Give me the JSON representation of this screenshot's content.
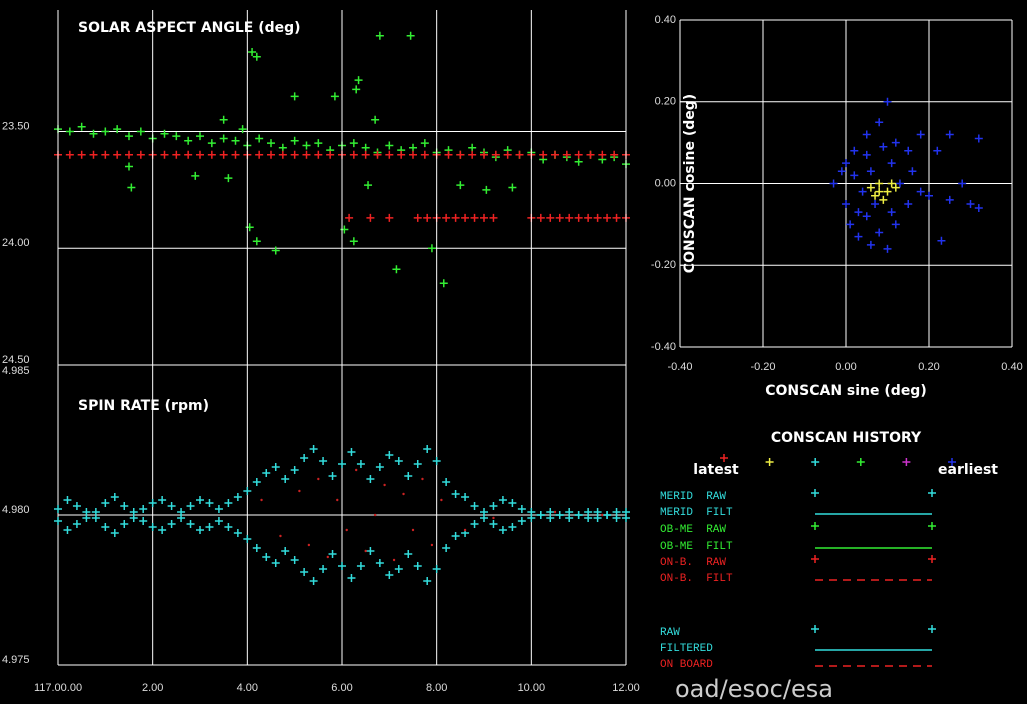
{
  "chart_data": [
    {
      "type": "scatter",
      "title": "SOLAR ASPECT ANGLE (deg)",
      "xlim": [
        0,
        12
      ],
      "ylim": [
        24.5,
        22.98
      ],
      "yticks": [
        {
          "value": 23.5,
          "label": "23.50"
        },
        {
          "value": 24,
          "label": "24.00"
        },
        {
          "value": 24.5,
          "label": "24.50"
        }
      ],
      "grid": true,
      "series": [
        {
          "color": "#33ee33",
          "x": [
            0,
            0.25,
            0.5,
            0.75,
            1,
            1.25,
            1.5,
            1.75,
            2,
            2.25,
            2.5,
            2.75,
            3,
            3.25,
            3.5,
            3.75,
            4,
            4.25,
            4.5,
            4.75,
            5,
            5.25,
            5.5,
            5.75,
            6,
            6.25,
            6.5,
            6.75,
            7,
            7.25,
            7.5,
            7.75,
            8,
            8.25,
            8.5,
            8.75,
            9,
            9.25,
            9.5,
            9.75,
            10,
            10.25,
            10.5,
            10.75,
            11,
            11.25,
            11.5,
            11.75,
            12,
            4.1,
            4.2,
            6.8,
            7.45,
            5.0,
            5.85,
            6.35,
            6.3,
            3.5,
            3.9,
            6.7,
            4.05,
            4.2,
            4.6,
            6.05,
            6.25,
            7.15,
            7.9,
            8.15,
            1.55,
            1.5,
            8.5,
            9.05,
            9.6,
            6.55,
            2.9,
            3.6
          ],
          "values": [
            23.49,
            23.5,
            23.48,
            23.51,
            23.5,
            23.49,
            23.52,
            23.5,
            23.53,
            23.51,
            23.52,
            23.54,
            23.52,
            23.55,
            23.53,
            23.54,
            23.56,
            23.53,
            23.55,
            23.57,
            23.54,
            23.56,
            23.55,
            23.58,
            23.56,
            23.55,
            23.57,
            23.59,
            23.56,
            23.58,
            23.57,
            23.55,
            23.59,
            23.58,
            23.6,
            23.57,
            23.59,
            23.61,
            23.58,
            23.6,
            23.59,
            23.62,
            23.6,
            23.61,
            23.63,
            23.6,
            23.62,
            23.61,
            23.64,
            23.16,
            23.18,
            23.09,
            23.09,
            23.35,
            23.35,
            23.28,
            23.32,
            23.45,
            23.49,
            23.45,
            23.91,
            23.97,
            24.01,
            23.92,
            23.97,
            24.09,
            24.0,
            24.15,
            23.74,
            23.65,
            23.73,
            23.75,
            23.74,
            23.73,
            23.69,
            23.7
          ]
        },
        {
          "color": "#ee2222",
          "x": [
            0,
            0.25,
            0.5,
            0.75,
            1,
            1.25,
            1.5,
            1.75,
            2,
            2.25,
            2.5,
            2.75,
            3,
            3.25,
            3.5,
            3.75,
            4,
            4.25,
            4.5,
            4.75,
            5,
            5.25,
            5.5,
            5.75,
            6,
            6.25,
            6.5,
            6.75,
            7,
            7.25,
            7.5,
            7.75,
            8,
            8.25,
            8.5,
            8.75,
            9,
            9.25,
            9.5,
            9.75,
            10,
            10.25,
            10.5,
            10.75,
            11,
            11.25,
            11.5,
            11.75,
            12,
            6.15,
            6.6,
            7.0,
            7.6,
            7.8,
            8.0,
            8.2,
            8.4,
            8.6,
            8.8,
            9.0,
            9.2,
            10.0,
            10.2,
            10.4,
            10.6,
            10.8,
            11.0,
            11.2,
            11.4,
            11.6,
            11.8,
            12.0
          ],
          "values": [
            23.6,
            23.6,
            23.6,
            23.6,
            23.6,
            23.6,
            23.6,
            23.6,
            23.6,
            23.6,
            23.6,
            23.6,
            23.6,
            23.6,
            23.6,
            23.6,
            23.6,
            23.6,
            23.6,
            23.6,
            23.6,
            23.6,
            23.6,
            23.6,
            23.6,
            23.6,
            23.6,
            23.6,
            23.6,
            23.6,
            23.6,
            23.6,
            23.6,
            23.6,
            23.6,
            23.6,
            23.6,
            23.6,
            23.6,
            23.6,
            23.6,
            23.6,
            23.6,
            23.6,
            23.6,
            23.6,
            23.6,
            23.6,
            23.6,
            23.87,
            23.87,
            23.87,
            23.87,
            23.87,
            23.87,
            23.87,
            23.87,
            23.87,
            23.87,
            23.87,
            23.87,
            23.87,
            23.87,
            23.87,
            23.87,
            23.87,
            23.87,
            23.87,
            23.87,
            23.87,
            23.87,
            23.87
          ]
        }
      ]
    },
    {
      "type": "scatter",
      "title": "SPIN RATE (rpm)",
      "xlim": [
        0,
        12
      ],
      "ylim": [
        4.975,
        4.985
      ],
      "xticks": [
        {
          "value": 0,
          "label": "117.00.00"
        },
        {
          "value": 2,
          "label": "2.00"
        },
        {
          "value": 4,
          "label": "4.00"
        },
        {
          "value": 6,
          "label": "6.00"
        },
        {
          "value": 8,
          "label": "8.00"
        },
        {
          "value": 10,
          "label": "10.00"
        },
        {
          "value": 12,
          "label": "12.00"
        }
      ],
      "yticks": [
        4.975,
        {
          "value": 4.98,
          "label": "4.980"
        },
        4.985
      ],
      "grid": true,
      "x": [
        0,
        0.2,
        0.4,
        0.6,
        0.8,
        1,
        1.2,
        1.4,
        1.6,
        1.8,
        2,
        2.2,
        2.4,
        2.6,
        2.8,
        3,
        3.2,
        3.4,
        3.6,
        3.8,
        4,
        4.2,
        4.4,
        4.6,
        4.8,
        5,
        5.2,
        5.4,
        5.6,
        5.8,
        6,
        6.2,
        6.4,
        6.6,
        6.8,
        7,
        7.2,
        7.4,
        7.6,
        7.8,
        8,
        8.2,
        8.4,
        8.6,
        8.8,
        9,
        9.2,
        9.4,
        9.6,
        9.8,
        10,
        10.2,
        10.4,
        10.6,
        10.8,
        11,
        11.2,
        11.4,
        11.6,
        11.8,
        12
      ],
      "series": [
        {
          "color": "#33dddd",
          "values": [
            4.9802,
            4.9805,
            4.9803,
            4.9799,
            4.9801,
            4.9804,
            4.9806,
            4.9803,
            4.9799,
            4.9802,
            4.9804,
            4.9805,
            4.9803,
            4.9801,
            4.9803,
            4.9805,
            4.9804,
            4.9802,
            4.9804,
            4.9806,
            4.9808,
            4.9811,
            4.9814,
            4.9816,
            4.9812,
            4.9815,
            4.9819,
            4.9822,
            4.9818,
            4.9813,
            4.9817,
            4.9821,
            4.9817,
            4.9812,
            4.9816,
            4.982,
            4.9818,
            4.9813,
            4.9817,
            4.9822,
            4.9818,
            4.9811,
            4.9807,
            4.9806,
            4.9803,
            4.9801,
            4.9803,
            4.9805,
            4.9804,
            4.9802,
            4.9801,
            4.98,
            4.9801,
            4.98,
            4.9799,
            4.98,
            4.9801,
            4.9799,
            4.98,
            4.9801,
            4.9799
          ]
        },
        {
          "color": "#33dddd",
          "values": [
            4.9798,
            4.9795,
            4.9797,
            4.9801,
            4.9799,
            4.9796,
            4.9794,
            4.9797,
            4.9801,
            4.9798,
            4.9796,
            4.9795,
            4.9797,
            4.9799,
            4.9797,
            4.9795,
            4.9796,
            4.9798,
            4.9796,
            4.9794,
            4.9792,
            4.9789,
            4.9786,
            4.9784,
            4.9788,
            4.9785,
            4.9781,
            4.9778,
            4.9782,
            4.9787,
            4.9783,
            4.9779,
            4.9783,
            4.9788,
            4.9784,
            4.978,
            4.9782,
            4.9787,
            4.9783,
            4.9778,
            4.9782,
            4.9789,
            4.9793,
            4.9794,
            4.9797,
            4.9799,
            4.9797,
            4.9795,
            4.9796,
            4.9798,
            4.9799,
            4.98,
            4.9799,
            4.98,
            4.9801,
            4.98,
            4.9799,
            4.9801,
            4.98,
            4.9799,
            4.9801
          ]
        },
        {
          "color": "#cc2222",
          "marker": "dot",
          "x": [
            4.3,
            4.7,
            5.1,
            5.3,
            5.5,
            5.7,
            5.9,
            6.1,
            6.3,
            6.5,
            6.7,
            6.9,
            7.1,
            7.3,
            7.5,
            7.7,
            7.9,
            8.1,
            8.6,
            9.2,
            10.5,
            11.5
          ],
          "values": [
            4.9805,
            4.9793,
            4.9808,
            4.979,
            4.9812,
            4.9786,
            4.9805,
            4.9795,
            4.9815,
            4.9788,
            4.98,
            4.981,
            4.9785,
            4.9807,
            4.9795,
            4.9812,
            4.979,
            4.9805,
            4.9795,
            4.9799,
            4.9801,
            4.98
          ]
        }
      ]
    },
    {
      "type": "scatter",
      "xlabel": "CONSCAN sine (deg)",
      "ylabel": "CONSCAN cosine (deg)",
      "xlim": [
        -0.4,
        0.4
      ],
      "ylim": [
        -0.4,
        0.4
      ],
      "xticks": [
        {
          "value": -0.4,
          "label": "-0.40"
        },
        {
          "value": -0.2,
          "label": "-0.20"
        },
        {
          "value": 0,
          "label": "0.00"
        },
        {
          "value": 0.2,
          "label": "0.20"
        },
        {
          "value": 0.4,
          "label": "0.40"
        }
      ],
      "yticks": [
        {
          "value": -0.4,
          "label": "-0.40"
        },
        {
          "value": -0.2,
          "label": "-0.20"
        },
        {
          "value": 0,
          "label": "0.00"
        },
        {
          "value": 0.2,
          "label": "0.20"
        },
        {
          "value": 0.4,
          "label": "0.40"
        }
      ],
      "grid": true,
      "series": [
        {
          "color": "#2233ee",
          "x": [
            -0.03,
            0.0,
            0.02,
            0.05,
            0.08,
            0.1,
            0.12,
            0.15,
            0.0,
            0.01,
            0.03,
            0.05,
            0.08,
            0.1,
            0.12,
            0.15,
            0.02,
            0.04,
            0.06,
            0.11,
            0.13,
            0.16,
            0.18,
            0.22,
            0.25,
            0.28,
            0.32,
            0.3,
            0.32,
            0.25,
            0.2,
            0.23,
            0.18,
            0.05,
            0.07,
            0.09,
            -0.01,
            0.03,
            0.11,
            0.06
          ],
          "values": [
            0.0,
            0.05,
            0.08,
            0.12,
            0.15,
            0.2,
            0.1,
            0.08,
            -0.05,
            -0.1,
            -0.13,
            -0.08,
            -0.12,
            -0.16,
            -0.1,
            -0.05,
            0.02,
            -0.02,
            0.03,
            0.05,
            0.0,
            0.03,
            0.12,
            0.08,
            0.12,
            0.0,
            0.11,
            -0.05,
            -0.06,
            -0.04,
            -0.03,
            -0.14,
            -0.02,
            0.07,
            -0.05,
            0.09,
            0.03,
            -0.07,
            -0.07,
            -0.15
          ]
        },
        {
          "color": "#eeee44",
          "x": [
            0.06,
            0.08,
            0.1,
            0.07,
            0.09,
            0.11,
            0.08,
            0.12
          ],
          "values": [
            -0.01,
            0.0,
            -0.02,
            -0.03,
            -0.04,
            0.0,
            -0.02,
            -0.01
          ]
        }
      ]
    }
  ],
  "conscan_history": {
    "title": "CONSCAN HISTORY",
    "latest": "latest",
    "earliest": "earliest",
    "colors": [
      "#ee2222",
      "#eeee44",
      "#33dddd",
      "#33ee33",
      "#cc33cc",
      "#2233ee"
    ],
    "rows": [
      {
        "label": "MERID  RAW",
        "color": "#33dddd",
        "style": "raw"
      },
      {
        "label": "MERID  FILT",
        "color": "#33dddd",
        "style": "line"
      },
      {
        "label": "OB-ME  RAW",
        "color": "#33ee33",
        "style": "raw"
      },
      {
        "label": "OB-ME  FILT",
        "color": "#33ee33",
        "style": "line"
      },
      {
        "label": "ON-B.  RAW",
        "color": "#ee2222",
        "style": "raw"
      },
      {
        "label": "ON-B.  FILT",
        "color": "#ee2222",
        "style": "dashed"
      },
      {
        "label": "RAW",
        "color": "#33dddd",
        "style": "raw"
      },
      {
        "label": "FILTERED",
        "color": "#33dddd",
        "style": "line"
      },
      {
        "label": "ON BOARD",
        "color": "#ee2222",
        "style": "dashed"
      }
    ]
  },
  "footer": "oad/esoc/esa"
}
